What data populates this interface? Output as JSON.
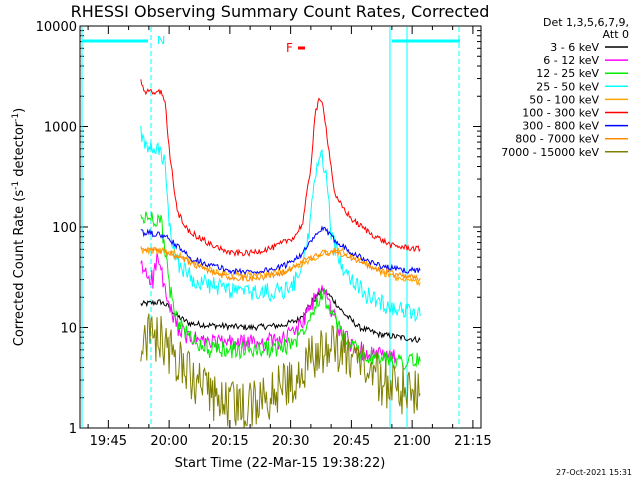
{
  "chart_data": {
    "type": "line",
    "title": "RHESSI Observing Summary Count Rates, Corrected",
    "xlabel": "Start Time (22-Mar-15 19:38:22)",
    "ylabel_main": "Corrected Count Rate (s",
    "ylabel_sup1": "-1",
    "ylabel_mid": " detector",
    "ylabel_sup2": "-1",
    "ylabel_end": ")",
    "yscale": "log",
    "ylim": [
      1,
      10000
    ],
    "xlim_minutes": [
      1178,
      1277
    ],
    "x_ticks": [
      {
        "label": "19:45",
        "minute": 1185
      },
      {
        "label": "20:00",
        "minute": 1200
      },
      {
        "label": "20:15",
        "minute": 1215
      },
      {
        "label": "20:30",
        "minute": 1230
      },
      {
        "label": "20:45",
        "minute": 1245
      },
      {
        "label": "21:00",
        "minute": 1260
      },
      {
        "label": "21:15",
        "minute": 1275
      }
    ],
    "y_ticks": [
      {
        "label": "1",
        "value": 1
      },
      {
        "label": "10",
        "value": 10
      },
      {
        "label": "100",
        "value": 100
      },
      {
        "label": "1000",
        "value": 1000
      },
      {
        "label": "10000",
        "value": 10000
      }
    ],
    "legend_header": [
      "Det 1,3,5,6,7,9,",
      "Att 0"
    ],
    "legend_placement": "right",
    "annotations": {
      "night_label": "N",
      "flare_label": "F",
      "date_stamp": "27-Oct-2021 15:31"
    },
    "series": [
      {
        "name": "3 - 6 keV",
        "color": "#000000",
        "points": [
          [
            1193,
            17
          ],
          [
            1198,
            18
          ],
          [
            1200,
            16
          ],
          [
            1202,
            13
          ],
          [
            1205,
            11
          ],
          [
            1210,
            10.5
          ],
          [
            1220,
            10
          ],
          [
            1228,
            10.5
          ],
          [
            1232,
            12
          ],
          [
            1235,
            17
          ],
          [
            1237,
            22
          ],
          [
            1238,
            24
          ],
          [
            1240,
            20
          ],
          [
            1243,
            14
          ],
          [
            1247,
            10
          ],
          [
            1252,
            8.5
          ],
          [
            1257,
            8
          ],
          [
            1262,
            7.5
          ]
        ]
      },
      {
        "name": "6 - 12 keV",
        "color": "#ff00ff",
        "points": [
          [
            1193,
            40
          ],
          [
            1196,
            30
          ],
          [
            1197,
            48
          ],
          [
            1198,
            38
          ],
          [
            1199,
            22
          ],
          [
            1201,
            12
          ],
          [
            1204,
            8
          ],
          [
            1210,
            7
          ],
          [
            1220,
            7
          ],
          [
            1228,
            7.5
          ],
          [
            1232,
            10
          ],
          [
            1235,
            16
          ],
          [
            1237,
            22
          ],
          [
            1238,
            25
          ],
          [
            1240,
            15
          ],
          [
            1243,
            8
          ],
          [
            1247,
            6
          ],
          [
            1252,
            5.2
          ],
          [
            1256,
            5
          ]
        ]
      },
      {
        "name": "12 - 25 keV",
        "color": "#00ee00",
        "points": [
          [
            1193,
            120
          ],
          [
            1196,
            125
          ],
          [
            1198,
            115
          ],
          [
            1199,
            60
          ],
          [
            1200,
            25
          ],
          [
            1202,
            12
          ],
          [
            1205,
            8
          ],
          [
            1210,
            6
          ],
          [
            1220,
            6
          ],
          [
            1228,
            6.2
          ],
          [
            1232,
            8
          ],
          [
            1235,
            14
          ],
          [
            1237,
            20
          ],
          [
            1238,
            22
          ],
          [
            1240,
            14
          ],
          [
            1243,
            8
          ],
          [
            1247,
            5.5
          ],
          [
            1252,
            4.8
          ],
          [
            1262,
            4.6
          ]
        ]
      },
      {
        "name": "25 - 50 keV",
        "color": "#00ffff",
        "points": [
          [
            1193,
            900
          ],
          [
            1194,
            600
          ],
          [
            1198,
            560
          ],
          [
            1199,
            400
          ],
          [
            1200,
            100
          ],
          [
            1202,
            45
          ],
          [
            1206,
            30
          ],
          [
            1212,
            25
          ],
          [
            1220,
            22
          ],
          [
            1228,
            23
          ],
          [
            1231,
            28
          ],
          [
            1234,
            60
          ],
          [
            1236,
            300
          ],
          [
            1237,
            500
          ],
          [
            1238,
            480
          ],
          [
            1239,
            300
          ],
          [
            1240,
            80
          ],
          [
            1243,
            40
          ],
          [
            1248,
            22
          ],
          [
            1253,
            17
          ],
          [
            1258,
            15
          ],
          [
            1262,
            13
          ]
        ]
      },
      {
        "name": "50 - 100 keV",
        "color": "#ffa500",
        "points": [
          [
            1193,
            58
          ],
          [
            1200,
            58
          ],
          [
            1206,
            45
          ],
          [
            1212,
            35
          ],
          [
            1220,
            33
          ],
          [
            1228,
            36
          ],
          [
            1234,
            45
          ],
          [
            1238,
            55
          ],
          [
            1242,
            60
          ],
          [
            1246,
            50
          ],
          [
            1252,
            36
          ],
          [
            1257,
            30
          ],
          [
            1262,
            28
          ]
        ]
      },
      {
        "name": "100 - 300 keV",
        "color": "#ff0000",
        "points": [
          [
            1193,
            2800
          ],
          [
            1194,
            2200
          ],
          [
            1198,
            2200
          ],
          [
            1199,
            1800
          ],
          [
            1200,
            600
          ],
          [
            1202,
            140
          ],
          [
            1205,
            90
          ],
          [
            1210,
            68
          ],
          [
            1215,
            55
          ],
          [
            1220,
            55
          ],
          [
            1226,
            63
          ],
          [
            1231,
            80
          ],
          [
            1233,
            110
          ],
          [
            1235,
            400
          ],
          [
            1236,
            1300
          ],
          [
            1237,
            1800
          ],
          [
            1238,
            1700
          ],
          [
            1239,
            800
          ],
          [
            1241,
            200
          ],
          [
            1245,
            120
          ],
          [
            1250,
            85
          ],
          [
            1255,
            65
          ],
          [
            1262,
            60
          ]
        ]
      },
      {
        "name": "300 - 800 keV",
        "color": "#0000ff",
        "points": [
          [
            1193,
            88
          ],
          [
            1197,
            85
          ],
          [
            1199,
            80
          ],
          [
            1201,
            70
          ],
          [
            1205,
            50
          ],
          [
            1210,
            42
          ],
          [
            1216,
            36
          ],
          [
            1222,
            36
          ],
          [
            1228,
            40
          ],
          [
            1233,
            55
          ],
          [
            1236,
            80
          ],
          [
            1238,
            98
          ],
          [
            1240,
            80
          ],
          [
            1244,
            60
          ],
          [
            1248,
            48
          ],
          [
            1253,
            40
          ],
          [
            1258,
            37
          ],
          [
            1262,
            37
          ]
        ]
      },
      {
        "name": "800 - 7000 keV",
        "color": "#ff8c00",
        "points": [
          [
            1193,
            60
          ],
          [
            1196,
            60
          ],
          [
            1200,
            55
          ],
          [
            1205,
            45
          ],
          [
            1210,
            36
          ],
          [
            1215,
            31
          ],
          [
            1222,
            31
          ],
          [
            1228,
            35
          ],
          [
            1233,
            45
          ],
          [
            1238,
            55
          ],
          [
            1242,
            55
          ],
          [
            1246,
            47
          ],
          [
            1252,
            37
          ],
          [
            1257,
            33
          ],
          [
            1262,
            31
          ]
        ]
      },
      {
        "name": "7000 - 15000 keV",
        "color": "#808000",
        "points": [
          [
            1193,
            8
          ],
          [
            1198,
            7.5
          ],
          [
            1200,
            6
          ],
          [
            1203,
            4
          ],
          [
            1206,
            3
          ],
          [
            1209,
            2.2
          ],
          [
            1212,
            1.8
          ],
          [
            1218,
            1.6
          ],
          [
            1224,
            2
          ],
          [
            1228,
            2.6
          ],
          [
            1232,
            3.4
          ],
          [
            1235,
            5
          ],
          [
            1238,
            6
          ],
          [
            1241,
            6.5
          ],
          [
            1244,
            5.5
          ],
          [
            1248,
            4
          ],
          [
            1252,
            3
          ],
          [
            1256,
            2.5
          ],
          [
            1262,
            2.2
          ]
        ]
      }
    ]
  }
}
